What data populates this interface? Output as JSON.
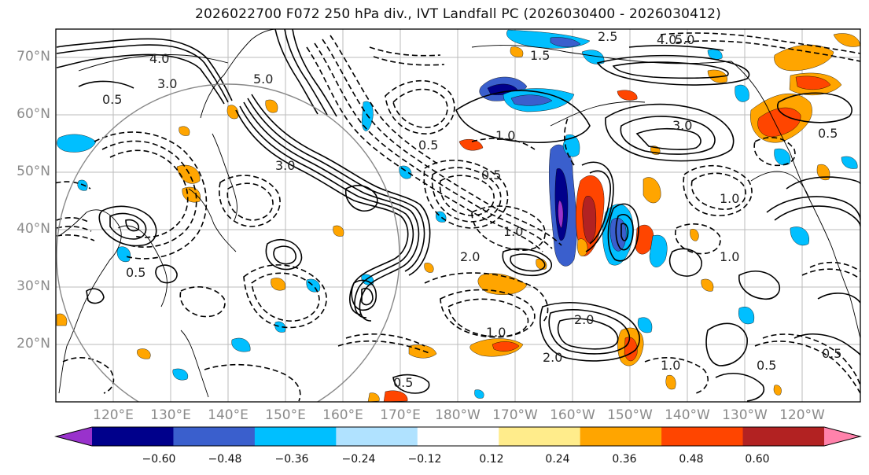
{
  "title": "2026022700 F072 250 hPa div., IVT Landfall PC (2026030400 - 2026030412)",
  "lat_labels": [
    "70°N",
    "60°N",
    "50°N",
    "40°N",
    "30°N",
    "20°N"
  ],
  "lon_labels": [
    "120°E",
    "130°E",
    "140°E",
    "150°E",
    "160°E",
    "170°E",
    "180°W",
    "170°W",
    "160°W",
    "150°W",
    "140°W",
    "130°W",
    "120°W"
  ],
  "colorbar": {
    "colors": [
      "#9932cc",
      "#00008b",
      "#3a5fcd",
      "#00bfff",
      "#b0e2ff",
      "#ffffff",
      "#ffec8b",
      "#ffa500",
      "#ff4500",
      "#b22222",
      "#ff82ab"
    ],
    "tick_labels": [
      "−0.60",
      "−0.48",
      "−0.36",
      "−0.24",
      "−0.12",
      "0.12",
      "0.24",
      "0.36",
      "0.48",
      "0.60"
    ]
  },
  "contour_labels": [
    "4.0",
    "3.0",
    "0.5",
    "5.0",
    "4.0",
    "5.0",
    "2.5",
    "1.5",
    "3.0",
    "1.0",
    "0.5",
    "3.0",
    "1.0",
    "0.5",
    "2.0",
    "1.0",
    "0.5",
    "2.0",
    "1.0",
    "0.5",
    "0.5",
    "1.0",
    "2.0",
    "1.0",
    "0.5",
    "0.5"
  ]
}
